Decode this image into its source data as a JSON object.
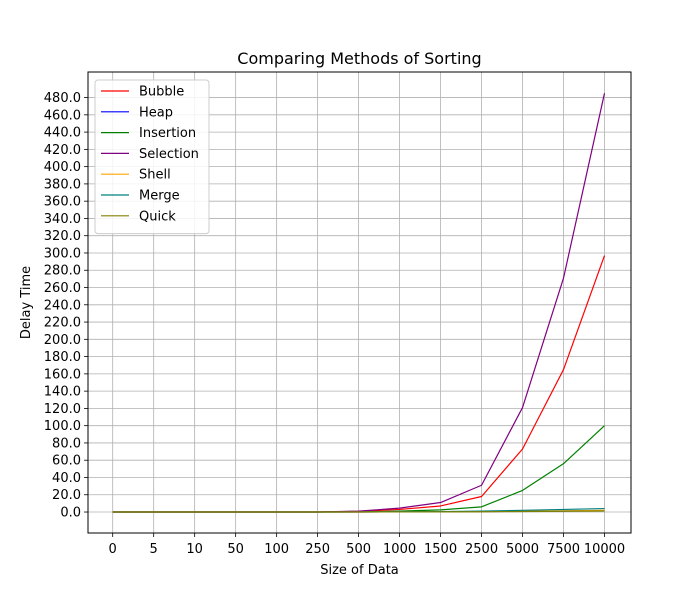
{
  "chart_data": {
    "type": "line",
    "title": "Comparing Methods of Sorting",
    "xlabel": "Size of Data",
    "ylabel": "Delay Time",
    "categories": [
      "0",
      "5",
      "10",
      "50",
      "100",
      "250",
      "500",
      "1000",
      "1500",
      "2500",
      "5000",
      "7500",
      "10000"
    ],
    "y_ticks": [
      "0.0",
      "20.0",
      "40.0",
      "60.0",
      "80.0",
      "100.0",
      "120.0",
      "140.0",
      "160.0",
      "180.0",
      "200.0",
      "220.0",
      "240.0",
      "260.0",
      "280.0",
      "300.0",
      "320.0",
      "340.0",
      "360.0",
      "380.0",
      "400.0",
      "420.0",
      "440.0",
      "460.0",
      "480.0"
    ],
    "ylim": [
      -24.3,
      509.6
    ],
    "grid": true,
    "legend_position": "top-left",
    "series": [
      {
        "name": "Bubble",
        "color": "#ff0000",
        "values": [
          0,
          0,
          0,
          0,
          0,
          0,
          0.7,
          3,
          7,
          18,
          73,
          165,
          297
        ]
      },
      {
        "name": "Heap",
        "color": "#0000ff",
        "values": [
          0,
          0,
          0,
          0,
          0,
          0,
          0.05,
          0.1,
          0.2,
          0.4,
          0.8,
          1.2,
          1.7
        ]
      },
      {
        "name": "Insertion",
        "color": "#008000",
        "values": [
          0,
          0,
          0,
          0,
          0,
          0,
          0.2,
          1,
          2.5,
          6,
          25,
          56,
          100
        ]
      },
      {
        "name": "Selection",
        "color": "#800080",
        "values": [
          0,
          0,
          0,
          0,
          0,
          0,
          1,
          4.5,
          11,
          31,
          121,
          271,
          485
        ]
      },
      {
        "name": "Shell",
        "color": "#ffa500",
        "values": [
          0,
          0,
          0,
          0,
          0,
          0,
          0.05,
          0.1,
          0.2,
          0.4,
          0.9,
          1.4,
          2
        ]
      },
      {
        "name": "Merge",
        "color": "#008080",
        "values": [
          0,
          0,
          0,
          0,
          0,
          0,
          0.1,
          0.3,
          0.5,
          1,
          2,
          3,
          4
        ]
      },
      {
        "name": "Quick",
        "color": "#808000",
        "values": [
          0,
          0,
          0,
          0,
          0,
          0,
          0.05,
          0.1,
          0.2,
          0.3,
          0.6,
          0.9,
          1.2
        ]
      }
    ]
  }
}
